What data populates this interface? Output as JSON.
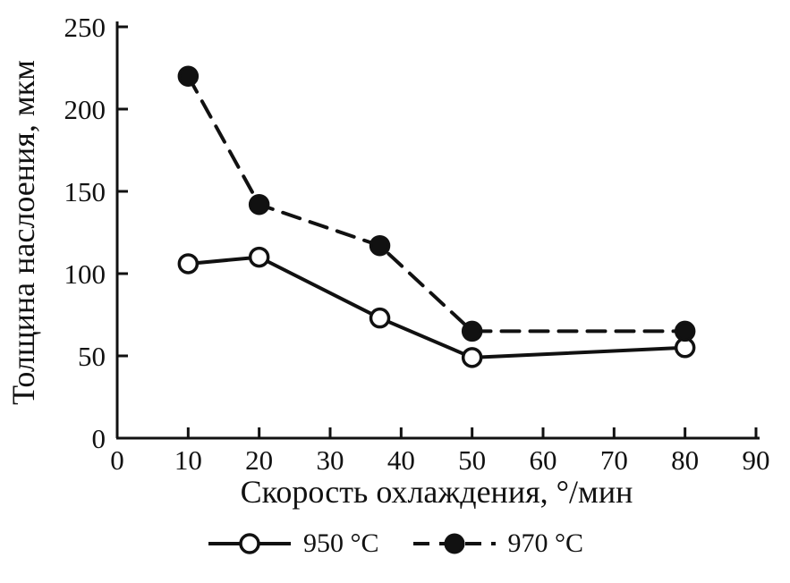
{
  "chart_data": {
    "type": "line",
    "title": "",
    "xlabel": "Скорость охлаждения, °/мин",
    "ylabel": "Толщина наслоения, мкм",
    "xlim": [
      0,
      90
    ],
    "ylim": [
      0,
      250
    ],
    "xticks": [
      0,
      10,
      20,
      30,
      40,
      50,
      60,
      70,
      80,
      90
    ],
    "yticks": [
      0,
      50,
      100,
      150,
      200,
      250
    ],
    "grid": false,
    "legend_position": "bottom",
    "axis_color": "#111111",
    "series": [
      {
        "name": "950 °C",
        "line_style": "solid",
        "marker": "open-circle",
        "color": "#111111",
        "x": [
          10,
          20,
          37,
          50,
          80
        ],
        "y": [
          106,
          110,
          73,
          49,
          55
        ]
      },
      {
        "name": "970 °C",
        "line_style": "dashed",
        "marker": "filled-circle",
        "color": "#111111",
        "x": [
          10,
          20,
          37,
          50,
          80
        ],
        "y": [
          220,
          142,
          117,
          65,
          65
        ]
      }
    ]
  }
}
